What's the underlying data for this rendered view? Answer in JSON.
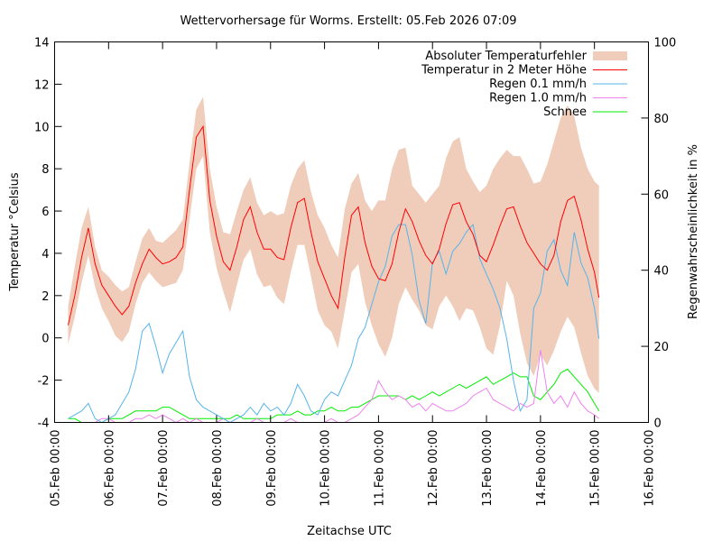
{
  "chart_data": {
    "type": "line",
    "title": "Wettervorhersage für Worms. Erstellt: 05.Feb 2026 07:09",
    "xlabel": "Zeitachse UTC",
    "ylabel": "Temperatur °Celsius",
    "y2label": "Regenwahrscheinlichkeit in %",
    "xlim_hours": [
      0,
      264
    ],
    "ylim": [
      -4,
      14
    ],
    "y2lim": [
      0,
      100
    ],
    "x_ticks": [
      "05.Feb 00:00",
      "06.Feb 00:00",
      "07.Feb 00:00",
      "08.Feb 00:00",
      "09.Feb 00:00",
      "10.Feb 00:00",
      "11.Feb 00:00",
      "12.Feb 00:00",
      "13.Feb 00:00",
      "14.Feb 00:00",
      "15.Feb 00:00",
      "16.Feb 00:00"
    ],
    "y_ticks": [
      "-4",
      "-2",
      "0",
      "2",
      "4",
      "6",
      "8",
      "10",
      "12",
      "14"
    ],
    "y_tick_values": [
      -4,
      -2,
      0,
      2,
      4,
      6,
      8,
      10,
      12,
      14
    ],
    "y2_ticks": [
      "0",
      "20",
      "40",
      "60",
      "80",
      "100"
    ],
    "y2_tick_values": [
      0,
      20,
      40,
      60,
      80,
      100
    ],
    "legend_position": "top-right",
    "legend": [
      {
        "label": "Absoluter Temperaturfehler",
        "type": "band",
        "color": "#f0cdbb"
      },
      {
        "label": "Temperatur in 2 Meter Höhe",
        "type": "line",
        "color": "#ff0000"
      },
      {
        "label": "Regen 0.1 mm/h",
        "type": "line",
        "color": "#56b4e9"
      },
      {
        "label": "Regen 1.0 mm/h",
        "type": "line",
        "color": "#ee82ee"
      },
      {
        "label": "Schnee",
        "type": "line",
        "color": "#00ee00"
      }
    ],
    "x_hours": [
      6,
      9,
      12,
      15,
      18,
      21,
      24,
      27,
      30,
      33,
      36,
      39,
      42,
      45,
      48,
      51,
      54,
      57,
      60,
      63,
      66,
      69,
      72,
      75,
      78,
      81,
      84,
      87,
      90,
      93,
      96,
      99,
      102,
      105,
      108,
      111,
      114,
      117,
      120,
      123,
      126,
      129,
      132,
      135,
      138,
      141,
      144,
      147,
      150,
      153,
      156,
      159,
      162,
      165,
      168,
      171,
      174,
      177,
      180,
      183,
      186,
      189,
      192,
      195,
      198,
      201,
      204,
      207,
      210,
      213,
      216,
      219,
      222,
      225,
      228,
      231,
      234,
      237,
      240,
      242
    ],
    "series": [
      {
        "name": "Temperatur in 2 Meter Höhe",
        "axis": "y",
        "values": [
          0.6,
          2.0,
          3.8,
          5.2,
          3.5,
          2.5,
          2.0,
          1.5,
          1.1,
          1.5,
          2.6,
          3.5,
          4.2,
          3.8,
          3.5,
          3.6,
          3.8,
          4.3,
          7.0,
          9.5,
          10.0,
          6.5,
          4.8,
          3.6,
          3.2,
          4.3,
          5.6,
          6.2,
          5.0,
          4.2,
          4.2,
          3.8,
          3.7,
          5.2,
          6.4,
          6.6,
          5.0,
          3.6,
          2.8,
          2.0,
          1.4,
          3.8,
          5.8,
          6.2,
          4.5,
          3.4,
          2.8,
          2.7,
          3.5,
          5.0,
          6.1,
          5.5,
          4.6,
          3.9,
          3.5,
          4.2,
          5.4,
          6.3,
          6.4,
          5.5,
          4.9,
          3.9,
          3.6,
          4.4,
          5.3,
          6.1,
          6.2,
          5.3,
          4.5,
          4.0,
          3.5,
          3.2,
          3.9,
          5.5,
          6.5,
          6.7,
          5.6,
          4.2,
          3.1,
          1.9
        ]
      },
      {
        "name": "Absoluter Temperaturfehler (untere Grenze)",
        "axis": "y",
        "values": [
          -0.3,
          1.0,
          2.6,
          3.9,
          2.4,
          1.4,
          0.8,
          0.1,
          -0.2,
          0.3,
          1.6,
          2.6,
          3.1,
          2.7,
          2.4,
          2.5,
          2.6,
          3.2,
          5.6,
          8.0,
          8.6,
          5.0,
          3.3,
          2.2,
          1.2,
          2.5,
          3.7,
          4.2,
          3.0,
          2.4,
          2.5,
          1.9,
          1.6,
          3.1,
          4.4,
          4.4,
          2.9,
          1.3,
          0.6,
          0.3,
          -0.5,
          1.3,
          3.1,
          3.5,
          1.7,
          0.6,
          -0.3,
          -0.9,
          0.0,
          1.6,
          2.4,
          1.8,
          1.3,
          0.6,
          0.4,
          1.5,
          2.0,
          1.5,
          0.8,
          1.4,
          1.3,
          0.5,
          -0.5,
          -0.8,
          0.6,
          2.7,
          2.0,
          0.2,
          -1.2,
          -1.8,
          -0.8,
          -1.3,
          -0.6,
          0.3,
          1.0,
          0.5,
          -0.7,
          -1.8,
          -2.4,
          -2.6
        ]
      },
      {
        "name": "Absoluter Temperaturfehler (obere Grenze)",
        "axis": "y",
        "values": [
          1.5,
          3.4,
          5.2,
          6.2,
          4.3,
          3.2,
          2.9,
          2.5,
          2.2,
          2.4,
          3.6,
          4.7,
          5.2,
          4.6,
          4.5,
          4.8,
          5.1,
          5.6,
          8.3,
          10.8,
          11.4,
          8.0,
          6.2,
          5.0,
          4.9,
          6.0,
          7.0,
          7.6,
          6.4,
          5.8,
          6.0,
          5.8,
          5.9,
          7.2,
          8.0,
          8.4,
          6.9,
          5.8,
          5.2,
          4.4,
          3.8,
          6.1,
          7.3,
          7.8,
          6.5,
          6.0,
          6.5,
          6.5,
          8.0,
          8.9,
          9.0,
          7.2,
          6.8,
          6.4,
          6.8,
          7.2,
          8.5,
          9.3,
          9.5,
          8.0,
          7.4,
          6.9,
          7.2,
          8.0,
          8.5,
          8.9,
          8.6,
          8.6,
          8.0,
          7.3,
          7.4,
          8.2,
          9.3,
          10.4,
          11.0,
          10.5,
          9.0,
          8.0,
          7.4,
          7.2
        ]
      },
      {
        "name": "Regen 0.1 mm/h",
        "axis": "y2",
        "values": [
          1,
          2,
          3,
          5,
          1,
          0,
          1,
          2,
          5,
          8,
          14,
          24,
          26,
          20,
          13,
          18,
          21,
          24,
          12,
          6,
          4,
          3,
          2,
          1,
          0,
          1,
          2,
          4,
          2,
          5,
          3,
          4,
          2,
          5,
          10,
          7,
          3,
          2,
          6,
          8,
          7,
          11,
          15,
          22,
          25,
          31,
          37,
          41,
          49,
          52,
          52,
          44,
          32,
          26,
          42,
          45,
          39,
          45,
          47,
          50,
          52,
          43,
          39,
          35,
          30,
          22,
          11,
          3,
          6,
          30,
          34,
          45,
          48,
          40,
          36,
          50,
          42,
          38,
          30,
          22
        ]
      },
      {
        "name": "Regen 1.0 mm/h",
        "axis": "y2",
        "values": [
          0,
          0,
          0,
          0,
          0,
          1,
          1,
          0,
          0,
          0,
          1,
          1,
          2,
          1,
          2,
          1,
          0,
          1,
          0,
          1,
          0,
          0,
          0,
          1,
          0,
          0,
          0,
          0,
          1,
          0,
          0,
          0,
          0,
          1,
          0,
          0,
          0,
          0,
          0,
          1,
          0,
          0,
          1,
          2,
          4,
          6,
          11,
          8,
          6,
          7,
          6,
          4,
          5,
          3,
          5,
          4,
          3,
          3,
          4,
          5,
          7,
          8,
          9,
          6,
          5,
          4,
          3,
          5,
          4,
          5,
          19,
          8,
          5,
          7,
          4,
          8,
          5,
          3,
          2,
          1
        ]
      },
      {
        "name": "Schnee",
        "axis": "y2",
        "values": [
          1,
          1,
          0,
          0,
          0,
          0,
          1,
          1,
          1,
          2,
          3,
          3,
          3,
          3,
          4,
          4,
          3,
          2,
          1,
          1,
          1,
          1,
          1,
          1,
          1,
          2,
          1,
          1,
          1,
          1,
          1,
          2,
          2,
          2,
          3,
          2,
          2,
          3,
          3,
          4,
          3,
          3,
          4,
          4,
          5,
          6,
          7,
          7,
          7,
          7,
          6,
          7,
          6,
          7,
          8,
          7,
          8,
          9,
          10,
          9,
          10,
          11,
          12,
          10,
          11,
          12,
          13,
          12,
          12,
          7,
          6,
          8,
          10,
          13,
          14,
          12,
          10,
          8,
          5,
          3
        ]
      }
    ]
  }
}
